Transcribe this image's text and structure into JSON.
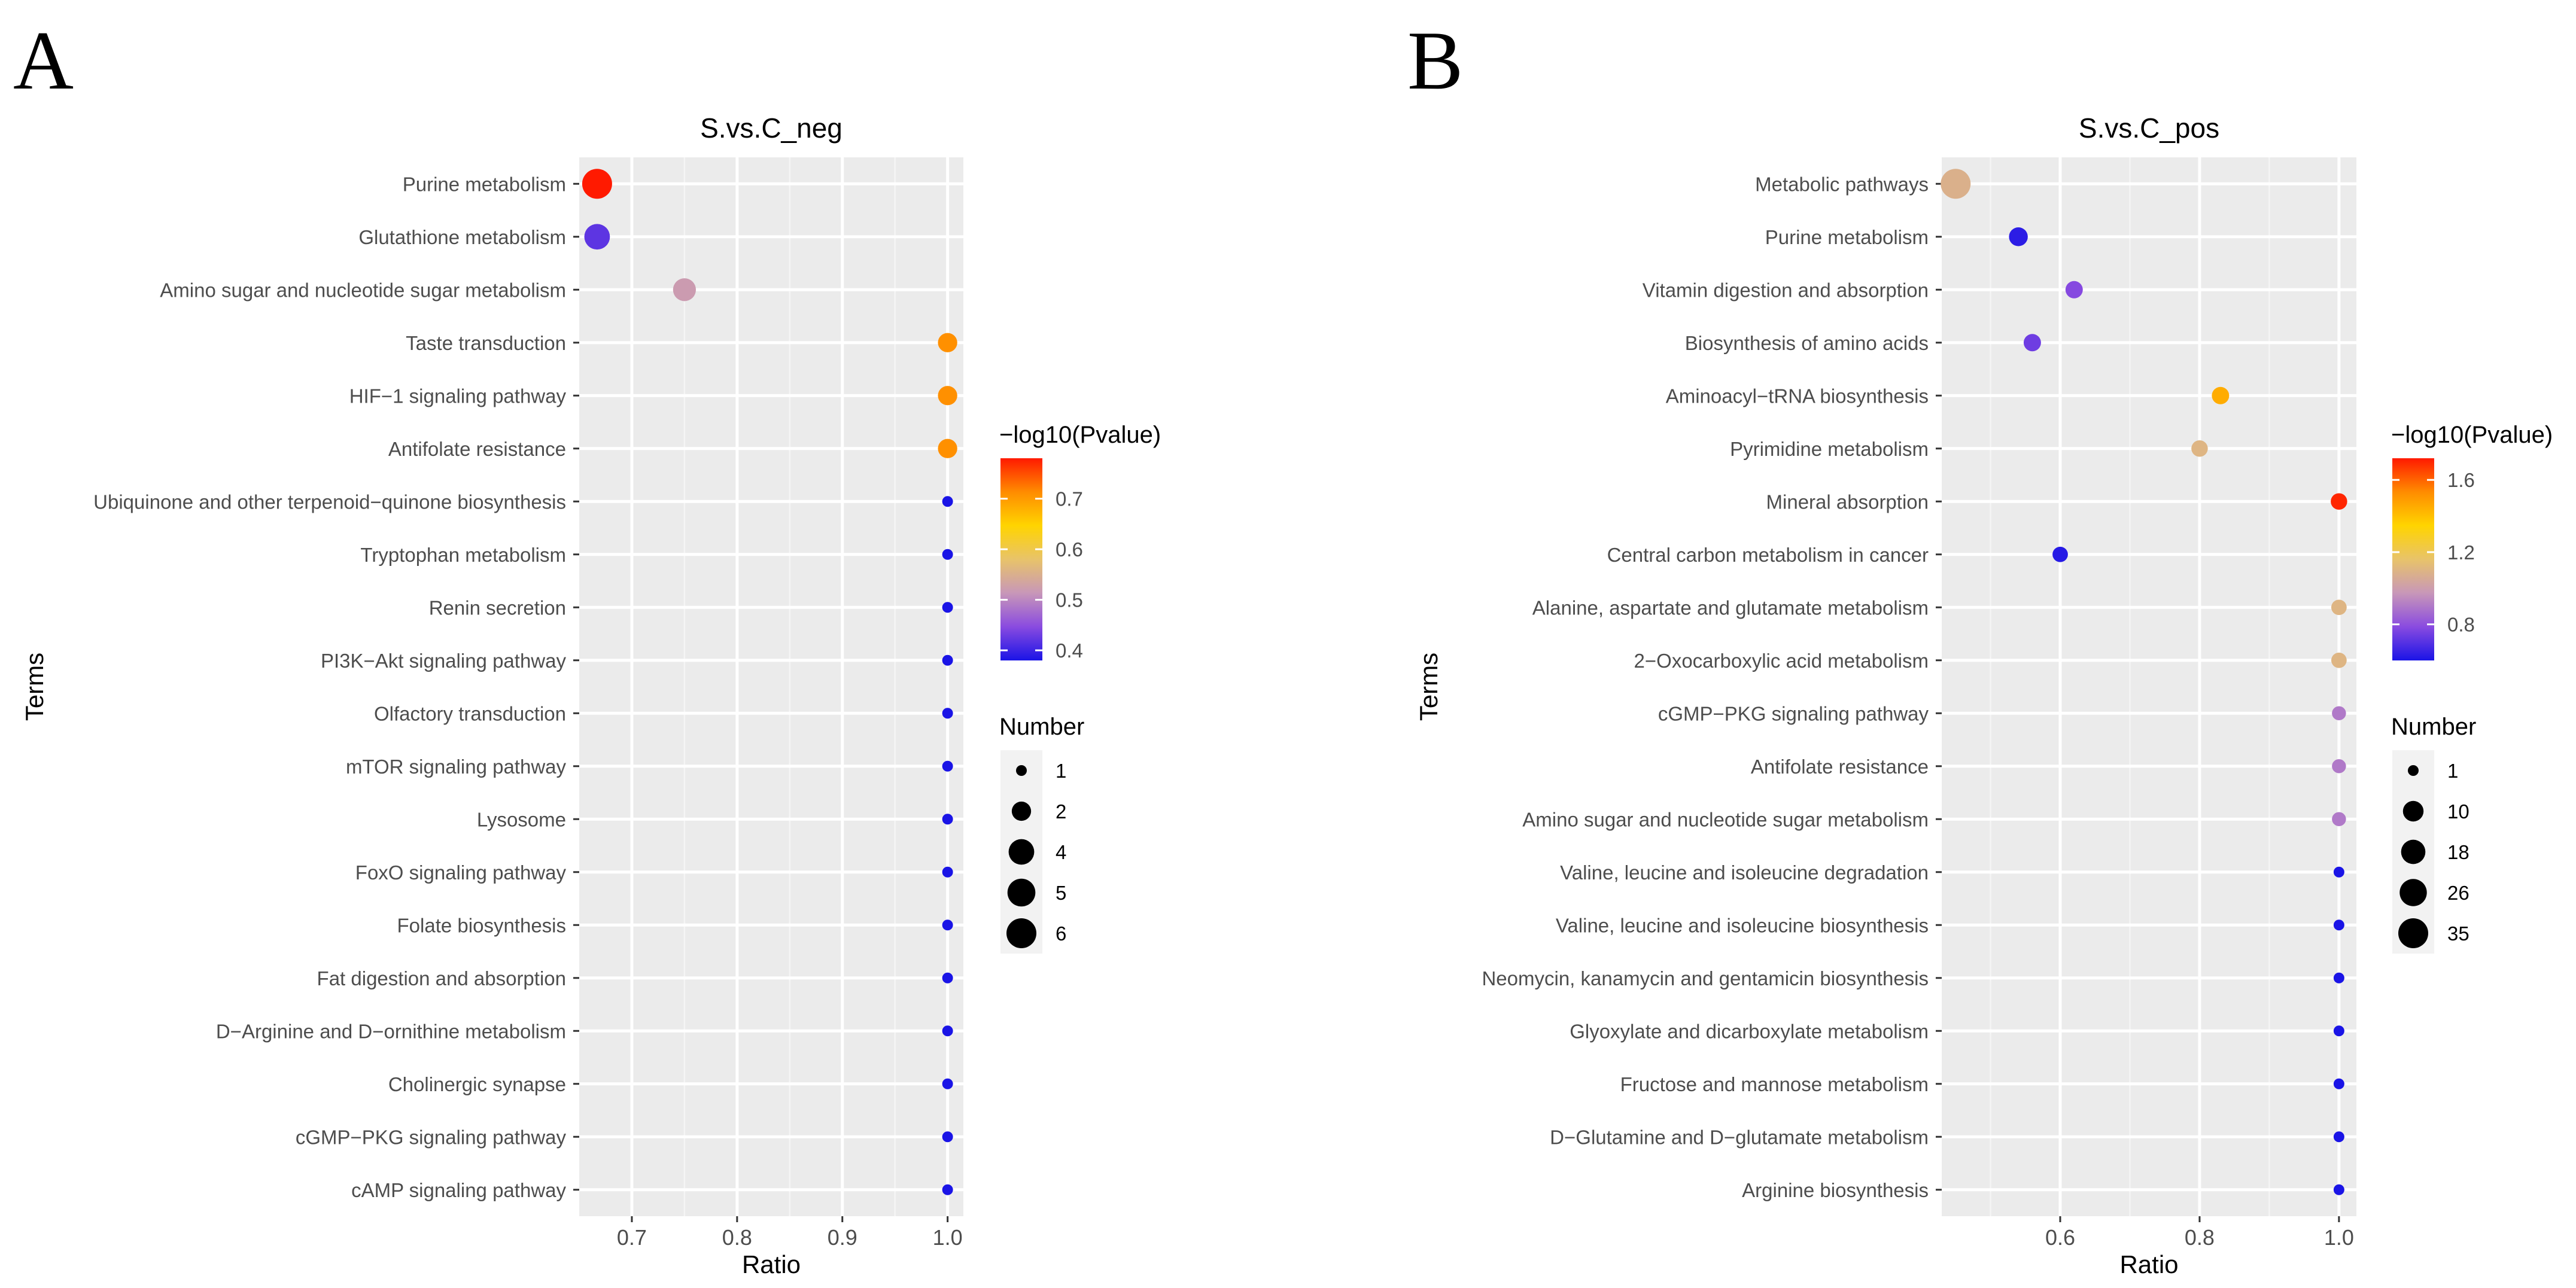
{
  "chart_data": [
    {
      "type": "scatter",
      "panel_label": "A",
      "title": "S.vs.C_neg",
      "xlabel": "Ratio",
      "ylabel": "Terms",
      "xlim": [
        0.65,
        1.015
      ],
      "xticks": [
        0.7,
        0.8,
        0.9,
        1.0
      ],
      "xtick_labels": [
        "0.7",
        "0.8",
        "0.9",
        "1.0"
      ],
      "grid": true,
      "color_legend": {
        "title": "−log10(Pvalue)",
        "min": 0.38,
        "max": 0.78,
        "ticks": [
          0.4,
          0.5,
          0.6,
          0.7
        ],
        "tick_labels": [
          "0.4",
          "0.5",
          "0.6",
          "0.7"
        ],
        "colors": [
          "#1a14e6",
          "#8a4be0",
          "#c897b8",
          "#e8c36a",
          "#ffd400",
          "#ff8c00",
          "#ff1a00"
        ]
      },
      "size_legend": {
        "title": "Number",
        "values": [
          1,
          2,
          4,
          5,
          6
        ],
        "labels": [
          "1",
          "2",
          "4",
          "5",
          "6"
        ]
      },
      "points": [
        {
          "term": "Purine metabolism",
          "ratio": 0.667,
          "number": 6,
          "neglog10p": 0.78
        },
        {
          "term": "Glutathione metabolism",
          "ratio": 0.667,
          "number": 4,
          "neglog10p": 0.42
        },
        {
          "term": "Amino sugar and nucleotide sugar metabolism",
          "ratio": 0.75,
          "number": 3,
          "neglog10p": 0.52
        },
        {
          "term": "Taste transduction",
          "ratio": 1.0,
          "number": 2,
          "neglog10p": 0.71
        },
        {
          "term": "HIF−1 signaling pathway",
          "ratio": 1.0,
          "number": 2,
          "neglog10p": 0.71
        },
        {
          "term": "Antifolate resistance",
          "ratio": 1.0,
          "number": 2,
          "neglog10p": 0.71
        },
        {
          "term": "Ubiquinone and other terpenoid−quinone biosynthesis",
          "ratio": 1.0,
          "number": 1,
          "neglog10p": 0.38
        },
        {
          "term": "Tryptophan metabolism",
          "ratio": 1.0,
          "number": 1,
          "neglog10p": 0.38
        },
        {
          "term": "Renin secretion",
          "ratio": 1.0,
          "number": 1,
          "neglog10p": 0.38
        },
        {
          "term": "PI3K−Akt signaling pathway",
          "ratio": 1.0,
          "number": 1,
          "neglog10p": 0.38
        },
        {
          "term": "Olfactory transduction",
          "ratio": 1.0,
          "number": 1,
          "neglog10p": 0.38
        },
        {
          "term": "mTOR signaling pathway",
          "ratio": 1.0,
          "number": 1,
          "neglog10p": 0.38
        },
        {
          "term": "Lysosome",
          "ratio": 1.0,
          "number": 1,
          "neglog10p": 0.38
        },
        {
          "term": "FoxO signaling pathway",
          "ratio": 1.0,
          "number": 1,
          "neglog10p": 0.38
        },
        {
          "term": "Folate biosynthesis",
          "ratio": 1.0,
          "number": 1,
          "neglog10p": 0.38
        },
        {
          "term": "Fat digestion and absorption",
          "ratio": 1.0,
          "number": 1,
          "neglog10p": 0.38
        },
        {
          "term": "D−Arginine and D−ornithine metabolism",
          "ratio": 1.0,
          "number": 1,
          "neglog10p": 0.38
        },
        {
          "term": "Cholinergic synapse",
          "ratio": 1.0,
          "number": 1,
          "neglog10p": 0.38
        },
        {
          "term": "cGMP−PKG signaling pathway",
          "ratio": 1.0,
          "number": 1,
          "neglog10p": 0.38
        },
        {
          "term": "cAMP signaling pathway",
          "ratio": 1.0,
          "number": 1,
          "neglog10p": 0.38
        }
      ]
    },
    {
      "type": "scatter",
      "panel_label": "B",
      "title": "S.vs.C_pos",
      "xlabel": "Ratio",
      "ylabel": "Terms",
      "xlim": [
        0.43,
        1.025
      ],
      "xticks": [
        0.6,
        0.8,
        1.0
      ],
      "xtick_labels": [
        "0.6",
        "0.8",
        "1.0"
      ],
      "grid": true,
      "color_legend": {
        "title": "−log10(Pvalue)",
        "min": 0.6,
        "max": 1.72,
        "ticks": [
          0.8,
          1.2,
          1.6
        ],
        "tick_labels": [
          "0.8",
          "1.2",
          "1.6"
        ],
        "colors": [
          "#1a14e6",
          "#8a4be0",
          "#c897b8",
          "#e8c36a",
          "#ffd400",
          "#ff8c00",
          "#ff1a00"
        ]
      },
      "size_legend": {
        "title": "Number",
        "values": [
          1,
          10,
          18,
          26,
          35
        ],
        "labels": [
          "1",
          "10",
          "18",
          "26",
          "35"
        ]
      },
      "points": [
        {
          "term": "Metabolic pathways",
          "ratio": 0.45,
          "number": 35,
          "neglog10p": 1.08
        },
        {
          "term": "Purine metabolism",
          "ratio": 0.54,
          "number": 7,
          "neglog10p": 0.63
        },
        {
          "term": "Vitamin digestion and absorption",
          "ratio": 0.62,
          "number": 5,
          "neglog10p": 0.78
        },
        {
          "term": "Biosynthesis of amino acids",
          "ratio": 0.56,
          "number": 5,
          "neglog10p": 0.74
        },
        {
          "term": "Aminoacyl−tRNA biosynthesis",
          "ratio": 0.83,
          "number": 5,
          "neglog10p": 1.45
        },
        {
          "term": "Pyrimidine metabolism",
          "ratio": 0.8,
          "number": 4,
          "neglog10p": 1.1
        },
        {
          "term": "Mineral absorption",
          "ratio": 1.0,
          "number": 4,
          "neglog10p": 1.7
        },
        {
          "term": "Central carbon metabolism in cancer",
          "ratio": 0.6,
          "number": 3,
          "neglog10p": 0.62
        },
        {
          "term": "Alanine, aspartate and glutamate metabolism",
          "ratio": 1.0,
          "number": 3,
          "neglog10p": 1.1
        },
        {
          "term": "2−Oxocarboxylic acid metabolism",
          "ratio": 1.0,
          "number": 3,
          "neglog10p": 1.1
        },
        {
          "term": "cGMP−PKG signaling pathway",
          "ratio": 1.0,
          "number": 2,
          "neglog10p": 0.9
        },
        {
          "term": "Antifolate resistance",
          "ratio": 1.0,
          "number": 2,
          "neglog10p": 0.9
        },
        {
          "term": "Amino sugar and nucleotide sugar metabolism",
          "ratio": 1.0,
          "number": 2,
          "neglog10p": 0.9
        },
        {
          "term": "Valine, leucine and isoleucine degradation",
          "ratio": 1.0,
          "number": 1,
          "neglog10p": 0.6
        },
        {
          "term": "Valine, leucine and isoleucine biosynthesis",
          "ratio": 1.0,
          "number": 1,
          "neglog10p": 0.6
        },
        {
          "term": "Neomycin, kanamycin and gentamicin biosynthesis",
          "ratio": 1.0,
          "number": 1,
          "neglog10p": 0.6
        },
        {
          "term": "Glyoxylate and dicarboxylate metabolism",
          "ratio": 1.0,
          "number": 1,
          "neglog10p": 0.6
        },
        {
          "term": "Fructose and mannose metabolism",
          "ratio": 1.0,
          "number": 1,
          "neglog10p": 0.6
        },
        {
          "term": "D−Glutamine and D−glutamate metabolism",
          "ratio": 1.0,
          "number": 1,
          "neglog10p": 0.6
        },
        {
          "term": "Arginine biosynthesis",
          "ratio": 1.0,
          "number": 1,
          "neglog10p": 0.6
        }
      ]
    }
  ]
}
